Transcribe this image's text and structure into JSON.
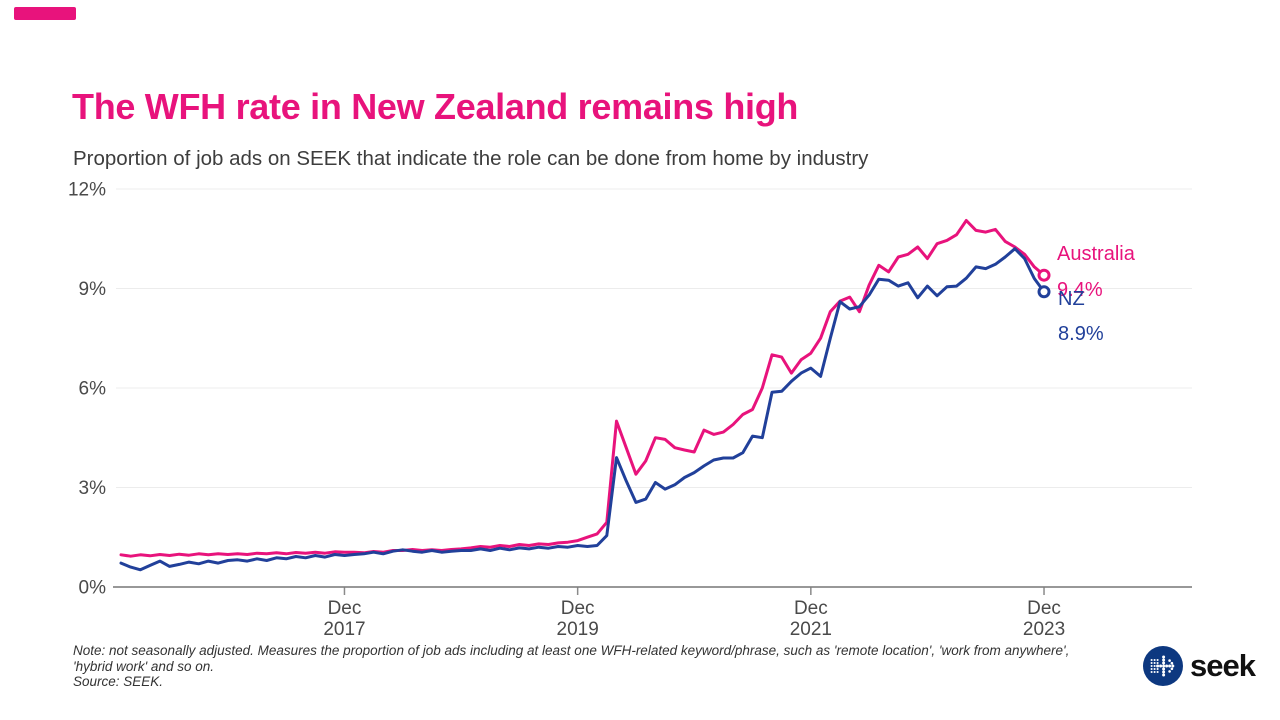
{
  "colors": {
    "pink": "#E8137C",
    "navy": "#21409A",
    "grid": "#ECECEC",
    "axis_line": "#767676",
    "tick": "#8A8A8A",
    "text_gray": "#4A4A4A",
    "logo_blue": "#0D3880"
  },
  "header": {
    "title": "The WFH rate in New Zealand remains high",
    "subtitle": "Proportion of job ads on SEEK that indicate the role can be done from home by industry"
  },
  "footer": {
    "note_line1": "Note: not seasonally adjusted. Measures the proportion of job ads including at least one WFH-related keyword/phrase, such as 'remote location', 'work from anywhere',",
    "note_line2": "'hybrid work' and so on.",
    "note_line3": "Source: SEEK.",
    "logo_text": "seek"
  },
  "chart_data": {
    "type": "line",
    "title": "Proportion of job ads on SEEK that indicate the role can be done from home by industry",
    "x_start_month": "2016-01",
    "x_end_month": "2023-12",
    "x_interval": "monthly",
    "ylim": [
      0,
      12
    ],
    "grid": "horizontal",
    "legend_position": "end-of-line-labels",
    "yticks": [
      {
        "value": 0,
        "label": "0%"
      },
      {
        "value": 3,
        "label": "3%"
      },
      {
        "value": 6,
        "label": "6%"
      },
      {
        "value": 9,
        "label": "9%"
      },
      {
        "value": 12,
        "label": "12%"
      }
    ],
    "xticks": [
      {
        "month_index": 23,
        "label_line1": "Dec",
        "label_line2": "2017"
      },
      {
        "month_index": 47,
        "label_line1": "Dec",
        "label_line2": "2019"
      },
      {
        "month_index": 71,
        "label_line1": "Dec",
        "label_line2": "2021"
      },
      {
        "month_index": 95,
        "label_line1": "Dec",
        "label_line2": "2023"
      }
    ],
    "series": [
      {
        "name": "Australia",
        "color": "#E8137C",
        "end_label": "Australia",
        "end_value_label": "9.4%",
        "values": [
          0.97,
          0.93,
          0.97,
          0.94,
          0.98,
          0.95,
          0.99,
          0.96,
          1.0,
          0.97,
          1.0,
          0.98,
          1.0,
          0.98,
          1.02,
          1.0,
          1.03,
          1.0,
          1.04,
          1.02,
          1.05,
          1.02,
          1.06,
          1.05,
          1.05,
          1.03,
          1.07,
          1.05,
          1.1,
          1.1,
          1.13,
          1.1,
          1.12,
          1.1,
          1.13,
          1.15,
          1.18,
          1.22,
          1.2,
          1.25,
          1.22,
          1.28,
          1.25,
          1.3,
          1.28,
          1.33,
          1.35,
          1.4,
          1.5,
          1.6,
          1.95,
          5.0,
          4.2,
          3.4,
          3.8,
          4.5,
          4.45,
          4.2,
          4.13,
          4.07,
          4.73,
          4.6,
          4.67,
          4.9,
          5.2,
          5.35,
          6.0,
          7.0,
          6.93,
          6.45,
          6.85,
          7.05,
          7.5,
          8.3,
          8.62,
          8.74,
          8.3,
          9.1,
          9.7,
          9.5,
          9.95,
          10.03,
          10.25,
          9.9,
          10.35,
          10.45,
          10.62,
          11.05,
          10.75,
          10.7,
          10.78,
          10.42,
          10.25,
          10.03,
          9.65,
          9.4
        ]
      },
      {
        "name": "NZ",
        "color": "#21409A",
        "end_label": "NZ",
        "end_value_label": "8.9%",
        "values": [
          0.72,
          0.6,
          0.52,
          0.65,
          0.78,
          0.62,
          0.68,
          0.75,
          0.7,
          0.78,
          0.72,
          0.8,
          0.82,
          0.78,
          0.85,
          0.8,
          0.88,
          0.85,
          0.92,
          0.88,
          0.95,
          0.9,
          0.98,
          0.95,
          0.98,
          1.0,
          1.05,
          1.0,
          1.08,
          1.12,
          1.08,
          1.05,
          1.1,
          1.05,
          1.08,
          1.1,
          1.1,
          1.15,
          1.1,
          1.17,
          1.12,
          1.18,
          1.15,
          1.2,
          1.17,
          1.22,
          1.2,
          1.25,
          1.22,
          1.25,
          1.55,
          3.9,
          3.2,
          2.55,
          2.65,
          3.15,
          2.95,
          3.08,
          3.3,
          3.45,
          3.65,
          3.83,
          3.89,
          3.89,
          4.05,
          4.55,
          4.5,
          5.87,
          5.9,
          6.2,
          6.45,
          6.6,
          6.35,
          7.5,
          8.6,
          8.38,
          8.45,
          8.8,
          9.28,
          9.25,
          9.07,
          9.17,
          8.72,
          9.07,
          8.78,
          9.05,
          9.07,
          9.31,
          9.65,
          9.6,
          9.73,
          9.95,
          10.2,
          9.9,
          9.3,
          8.9
        ]
      }
    ]
  }
}
